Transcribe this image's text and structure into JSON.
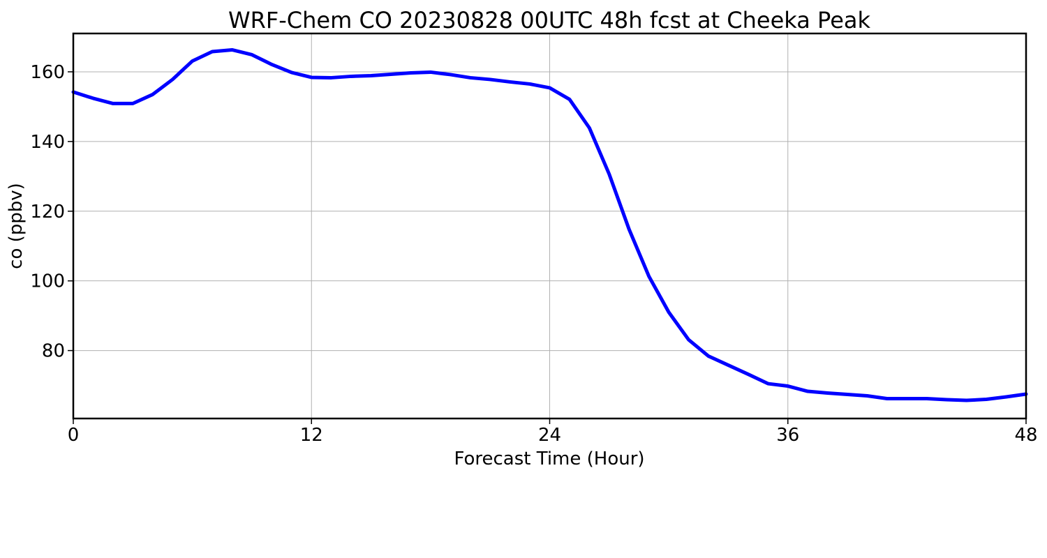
{
  "chart_data": {
    "type": "line",
    "title": "WRF-Chem CO  20230828 00UTC 48h fcst at Cheeka Peak",
    "xlabel": "Forecast Time (Hour)",
    "ylabel": "co  (ppbv)",
    "xlim": [
      0,
      48
    ],
    "ylim": [
      60.5,
      171
    ],
    "xticks": [
      0,
      12,
      24,
      36,
      48
    ],
    "yticks": [
      80,
      100,
      120,
      140,
      160
    ],
    "grid": true,
    "legend": "none",
    "line_color": "#0000ff",
    "x": [
      0,
      1,
      2,
      3,
      4,
      5,
      6,
      7,
      8,
      9,
      10,
      11,
      12,
      13,
      14,
      15,
      16,
      17,
      18,
      19,
      20,
      21,
      22,
      23,
      24,
      25,
      26,
      27,
      28,
      29,
      30,
      31,
      32,
      33,
      34,
      35,
      36,
      37,
      38,
      39,
      40,
      41,
      42,
      43,
      44,
      45,
      46,
      47,
      48
    ],
    "series": [
      {
        "values": [
          154.2,
          152.4,
          150.9,
          150.9,
          153.5,
          157.8,
          163.1,
          165.8,
          166.3,
          164.9,
          162.1,
          159.8,
          158.4,
          158.3,
          158.7,
          158.9,
          159.3,
          159.7,
          159.9,
          159.2,
          158.3,
          157.8,
          157.1,
          156.5,
          155.4,
          152.1,
          143.9,
          130.6,
          114.8,
          101.3,
          91.0,
          83.1,
          78.4,
          75.8,
          73.2,
          70.5,
          69.8,
          68.3,
          67.8,
          67.4,
          67.0,
          66.2,
          66.2,
          66.2,
          65.9,
          65.7,
          66.0,
          66.7,
          67.5
        ]
      }
    ]
  }
}
